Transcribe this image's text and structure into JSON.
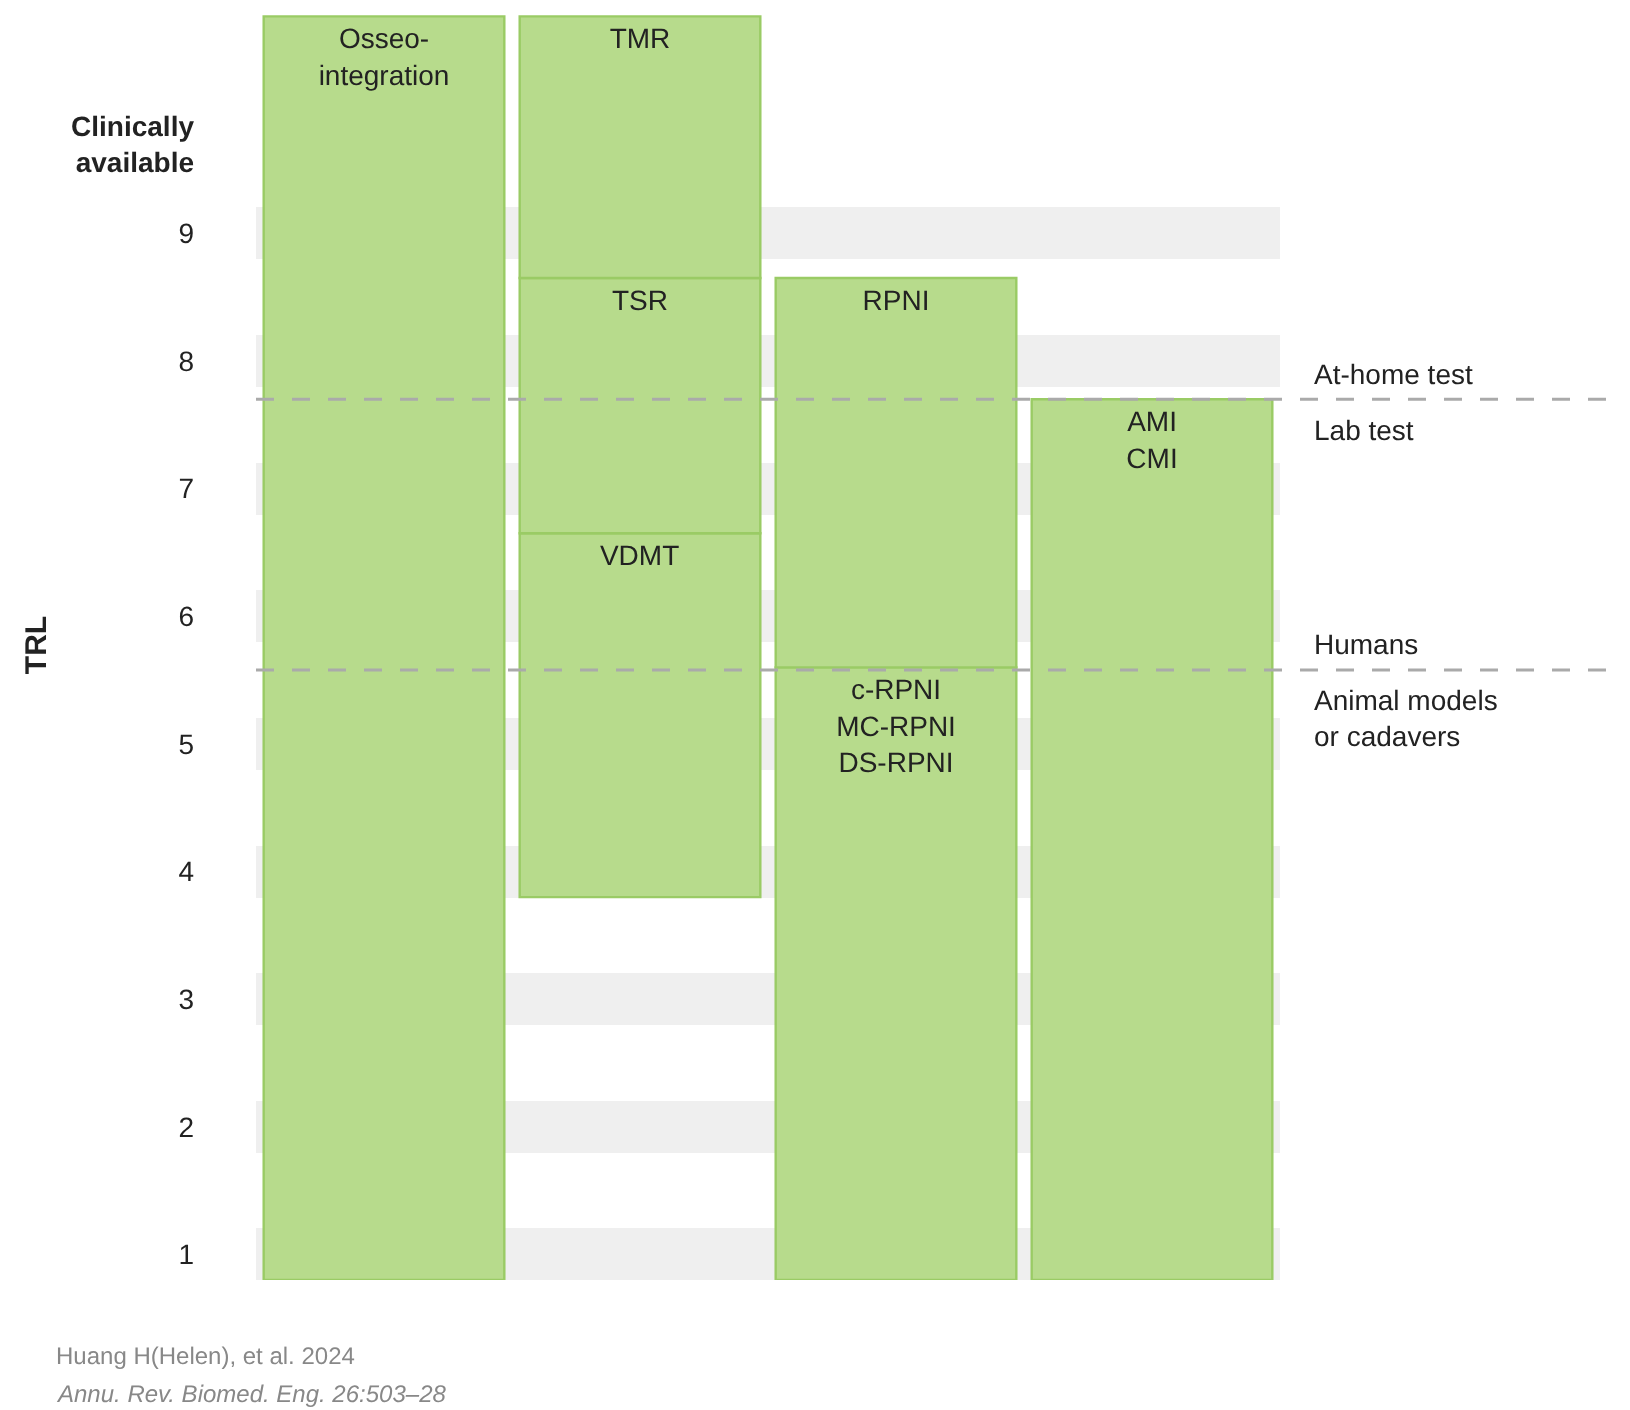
{
  "chart_data": {
    "type": "bar",
    "ylabel": "TRL",
    "categories": [
      null,
      null,
      null,
      null
    ],
    "series": [
      {
        "color": "#b7db8c",
        "base": [
          0.8,
          3.8,
          0.8,
          0.8
        ],
        "values": [
          9.9,
          2.85,
          4.8,
          6.9
        ],
        "value_labels": [
          "Osseo-\nintegration",
          "VDMT",
          "c-RPNI\nMC-RPNI\nDS-RPNI",
          "AMI\nCMI"
        ]
      },
      {
        "color": "#b7db8c",
        "base": [
          null,
          6.65,
          5.6,
          null
        ],
        "values": [
          null,
          2.0,
          3.05,
          null
        ],
        "value_labels": [
          null,
          "TSR",
          "RPNI",
          null
        ]
      },
      {
        "color": "#b7db8c",
        "base": [
          null,
          8.65,
          null,
          null
        ],
        "values": [
          null,
          2.05,
          null,
          null
        ],
        "value_labels": [
          null,
          "TMR",
          null,
          null
        ]
      }
    ],
    "ylim": [
      0.8,
      10.75
    ],
    "yticks": [
      1,
      2,
      3,
      4,
      5,
      6,
      7,
      8,
      9,
      {
        "value": 9.7,
        "label": "Clinically\navailable"
      }
    ],
    "grid": "y",
    "ref_lines": [
      {
        "axis": "y",
        "value": 7.7,
        "color": "#aaaaaa",
        "line_style": "dashed"
      },
      {
        "axis": "y",
        "value": 5.58,
        "color": "#aaaaaa",
        "line_style": "dashed"
      }
    ],
    "annotations": [
      "At-home test",
      "Lab test",
      "Humans",
      "Animal models\nor cadavers",
      "Huang H(Helen), et al. 2024",
      "Annu. Rev. Biomed. Eng. 26:503–28"
    ]
  }
}
